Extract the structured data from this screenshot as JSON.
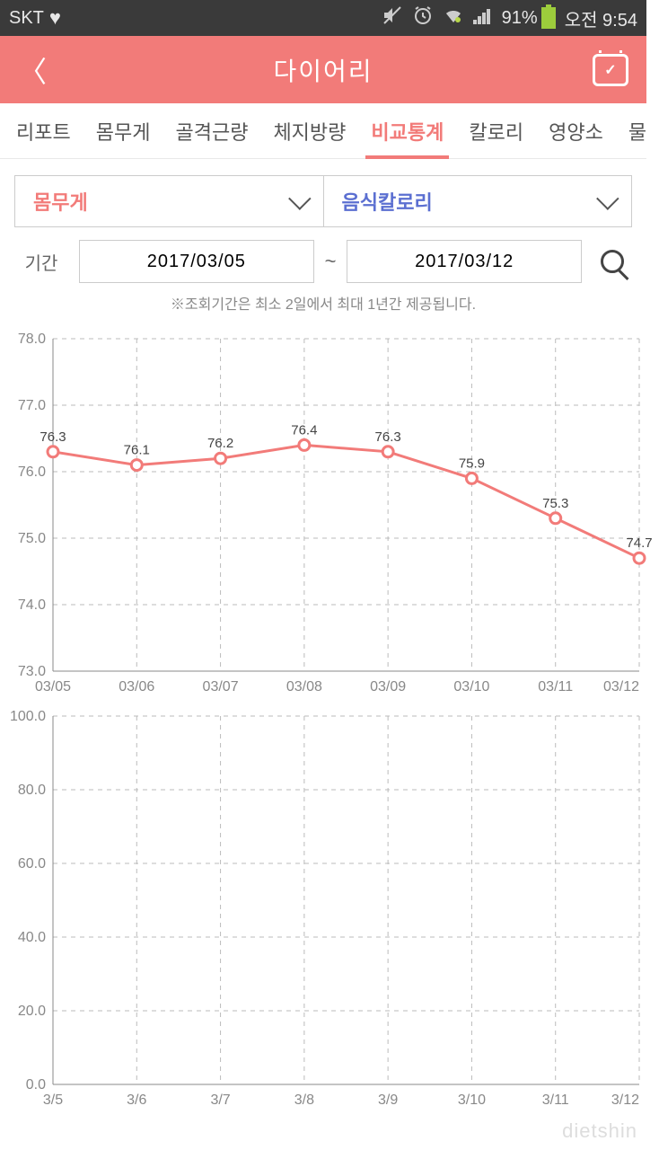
{
  "status": {
    "carrier": "SKT",
    "battery_pct": "91%",
    "time": "오전 9:54"
  },
  "header": {
    "title": "다이어리"
  },
  "tabs": {
    "items": [
      {
        "label": "리포트",
        "active": false
      },
      {
        "label": "몸무게",
        "active": false
      },
      {
        "label": "골격근량",
        "active": false
      },
      {
        "label": "체지방량",
        "active": false
      },
      {
        "label": "비교통계",
        "active": true
      },
      {
        "label": "칼로리",
        "active": false
      },
      {
        "label": "영양소",
        "active": false
      },
      {
        "label": "물",
        "active": false
      }
    ]
  },
  "selectors": {
    "left": "몸무게",
    "right": "음식칼로리"
  },
  "date": {
    "label": "기간",
    "start": "2017/03/05",
    "end": "2017/03/12",
    "note": "※조회기간은 최소 2일에서 최대 1년간 제공됩니다."
  },
  "chart1": {
    "type": "line",
    "line_color": "#f27b79",
    "marker_fill": "#ffffff",
    "grid_color": "#bbbbbb",
    "axis_color": "#888888",
    "background_color": "#ffffff",
    "line_width": 3,
    "marker_radius": 6,
    "label_fontsize": 15,
    "axis_fontsize": 16,
    "ylim": [
      73.0,
      78.0
    ],
    "ytick_step": 1.0,
    "yticks": [
      "78.0",
      "77.0",
      "76.0",
      "75.0",
      "74.0",
      "73.0"
    ],
    "xlabels": [
      "03/05",
      "03/06",
      "03/07",
      "03/08",
      "03/09",
      "03/10",
      "03/11",
      "03/12"
    ],
    "values": [
      76.3,
      76.1,
      76.2,
      76.4,
      76.3,
      75.9,
      75.3,
      74.7
    ],
    "value_labels": [
      "76.3",
      "76.1",
      "76.2",
      "76.4",
      "76.3",
      "75.9",
      "75.3",
      "74.7"
    ]
  },
  "chart2": {
    "type": "line",
    "line_color": "#5b6fd1",
    "grid_color": "#bbbbbb",
    "axis_color": "#888888",
    "background_color": "#ffffff",
    "axis_fontsize": 16,
    "ylim": [
      0.0,
      100.0
    ],
    "ytick_step": 20.0,
    "yticks": [
      "100.0",
      "80.0",
      "60.0",
      "40.0",
      "20.0",
      "0.0"
    ],
    "xlabels": [
      "3/5",
      "3/6",
      "3/7",
      "3/8",
      "3/9",
      "3/10",
      "3/11",
      "3/12"
    ],
    "values": []
  },
  "watermark": "dietshin"
}
